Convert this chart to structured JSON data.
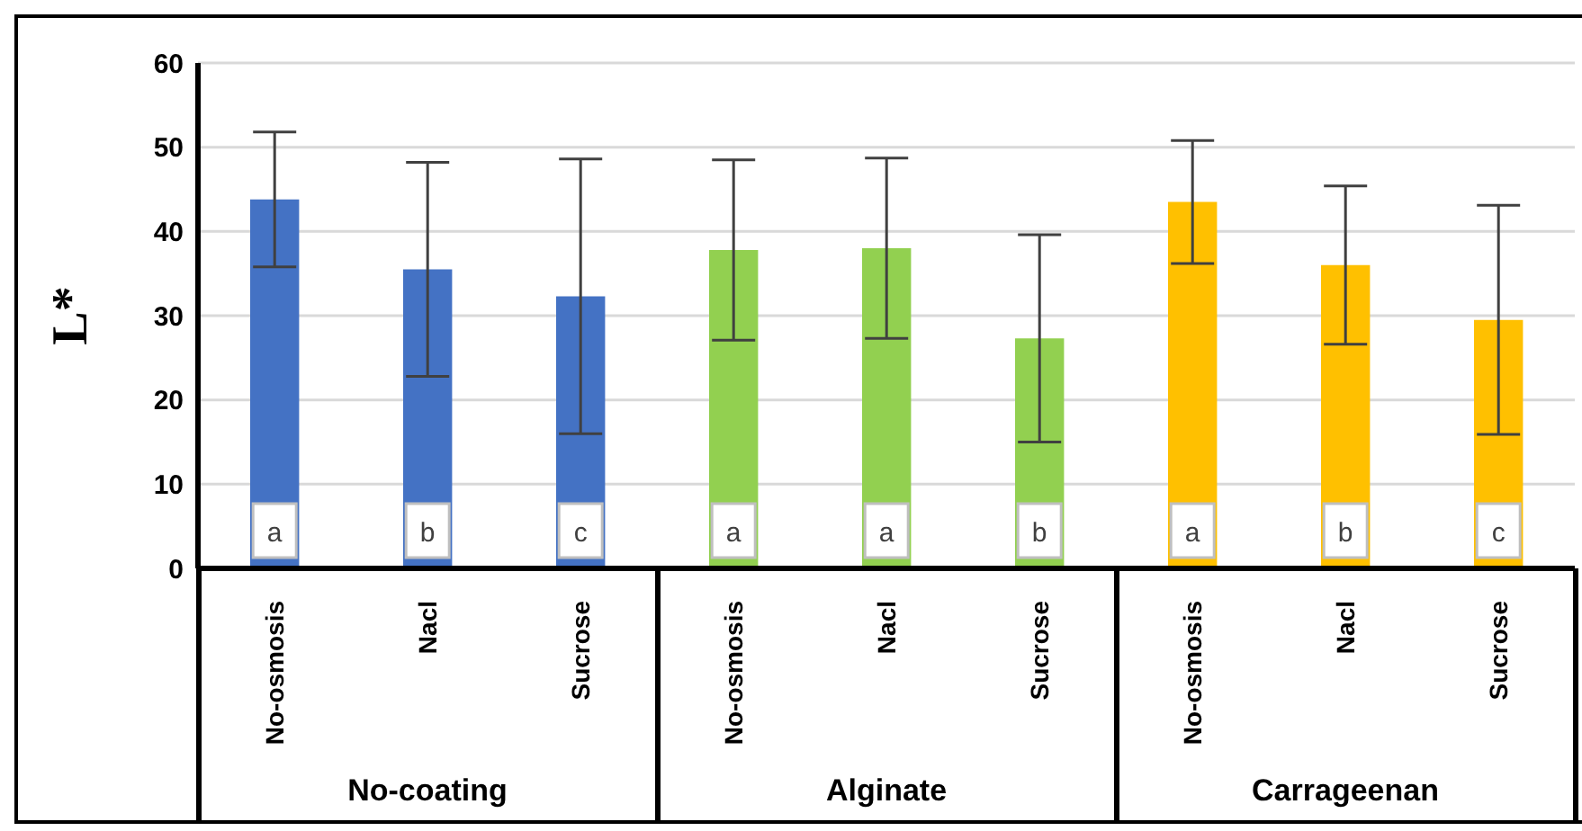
{
  "chart_data": {
    "type": "bar",
    "ylabel": "L*",
    "categories": [
      "No-osmosis",
      "Nacl",
      "Sucrose",
      "No-osmosis",
      "Nacl",
      "Sucrose",
      "No-osmosis",
      "Nacl",
      "Sucrose"
    ],
    "values": [
      43.8,
      35.5,
      32.3,
      37.8,
      38,
      27.3,
      43.5,
      36,
      29.5
    ],
    "errors": [
      8,
      12.7,
      16.3,
      10.7,
      10.7,
      12.3,
      7.3,
      9.4,
      13.6
    ],
    "value_labels": [
      "a",
      "b",
      "c",
      "a",
      "a",
      "b",
      "a",
      "b",
      "c"
    ],
    "colors": [
      "#4472c4",
      "#4472c4",
      "#4472c4",
      "#92d050",
      "#92d050",
      "#92d050",
      "#ffc000",
      "#ffc000",
      "#ffc000"
    ],
    "annotations": [
      "No-coating",
      "Alginate",
      "Carrageenan"
    ],
    "ylim": [
      0,
      60
    ],
    "yticks": [
      0,
      10,
      20,
      30,
      40,
      50,
      60
    ],
    "grid": "y"
  }
}
